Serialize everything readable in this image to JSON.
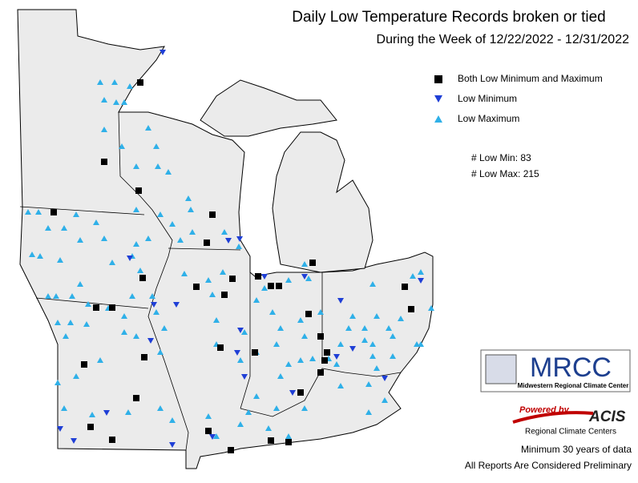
{
  "title": "Daily Low Temperature Records broken or tied",
  "subtitle": "During the Week of 12/22/2022 - 12/31/2022",
  "legend": [
    "Both Low Minimum and Maximum",
    "Low Minimum",
    "Low Maximum"
  ],
  "counts": [
    "# Low Min: 83",
    "# Low Max: 215"
  ],
  "logo": {
    "name": "MRCC",
    "full_name": "Midwestern Regional Climate Center"
  },
  "powered": {
    "prefix": "Powered by",
    "name": "ACIS",
    "full_name": "Regional Climate Centers"
  },
  "footer": [
    "Minimum 30 years of data",
    "All Reports Are Considered Preliminary"
  ]
}
